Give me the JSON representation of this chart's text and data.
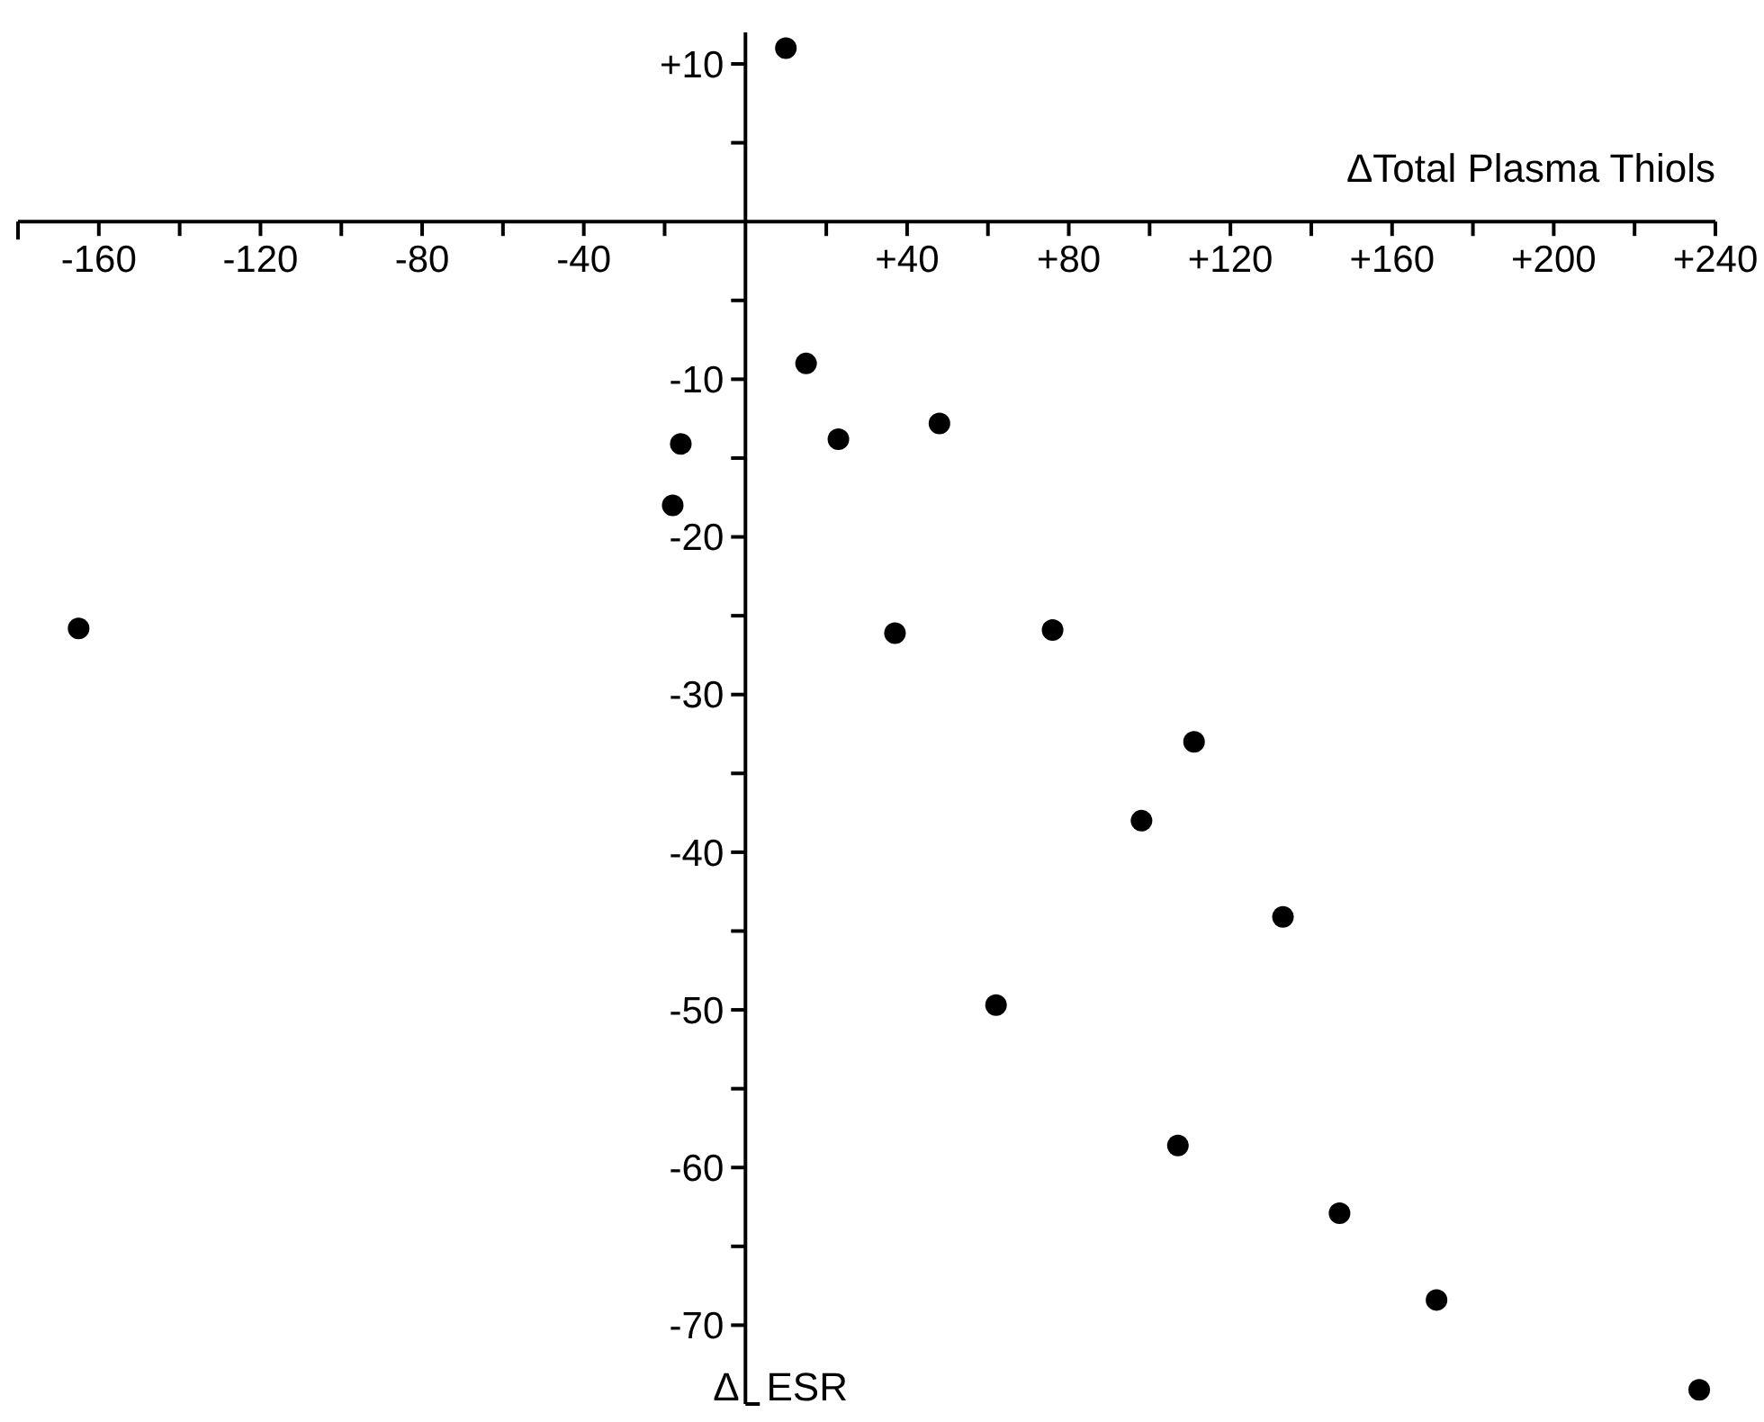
{
  "chart_data": {
    "type": "scatter",
    "xlabel": "ΔTotal Plasma Thiols",
    "ylabel": "Δ ESR",
    "xlim": [
      -180,
      240
    ],
    "ylim": [
      -75,
      12
    ],
    "xticks": [
      {
        "value": -160,
        "label": "-160"
      },
      {
        "value": -140,
        "label": null
      },
      {
        "value": -120,
        "label": "-120"
      },
      {
        "value": -100,
        "label": null
      },
      {
        "value": -80,
        "label": "-80"
      },
      {
        "value": -60,
        "label": null
      },
      {
        "value": -40,
        "label": "-40"
      },
      {
        "value": -20,
        "label": null
      },
      {
        "value": 20,
        "label": null
      },
      {
        "value": 40,
        "label": "+40"
      },
      {
        "value": 60,
        "label": null
      },
      {
        "value": 80,
        "label": "+80"
      },
      {
        "value": 100,
        "label": null
      },
      {
        "value": 120,
        "label": "+120"
      },
      {
        "value": 140,
        "label": null
      },
      {
        "value": 160,
        "label": "+160"
      },
      {
        "value": 180,
        "label": null
      },
      {
        "value": 200,
        "label": "+200"
      },
      {
        "value": 220,
        "label": null
      },
      {
        "value": 240,
        "label": "+240"
      }
    ],
    "yticks": [
      {
        "value": 10,
        "label": "+10"
      },
      {
        "value": 5,
        "label": null
      },
      {
        "value": -5,
        "label": null
      },
      -10,
      {
        "value": -15,
        "label": null
      },
      -20,
      {
        "value": -25,
        "label": null
      },
      -30,
      {
        "value": -35,
        "label": null
      },
      -40,
      {
        "value": -45,
        "label": null
      },
      -50,
      {
        "value": -55,
        "label": null
      },
      -60,
      {
        "value": -65,
        "label": null
      },
      -70
    ],
    "grid": false,
    "marker": "circle",
    "series": [
      {
        "color": "#000000",
        "x": [
          10,
          -165,
          -18,
          -16,
          15,
          23,
          48,
          37,
          76,
          111,
          98,
          133,
          62,
          107,
          147,
          171,
          236
        ],
        "values": [
          11,
          -25.8,
          -18,
          -14.1,
          -9,
          -13.8,
          -12.8,
          -26.1,
          -25.9,
          -33,
          -38,
          -44.1,
          -49.7,
          -58.6,
          -62.9,
          -68.4,
          -74.1
        ]
      }
    ]
  }
}
